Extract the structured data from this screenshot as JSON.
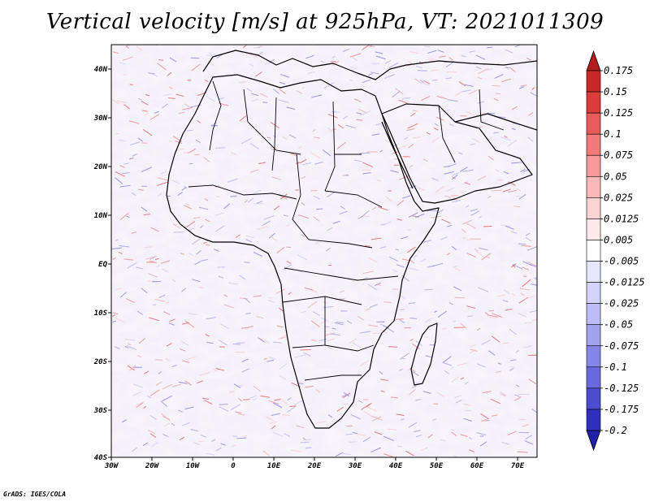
{
  "title": "Vertical velocity [m/s] at 925hPa, VT: 2021011309",
  "footer": "GrADS: IGES/COLA",
  "map": {
    "lon_ticks": [
      "30W",
      "20W",
      "10W",
      "0",
      "10E",
      "20E",
      "30E",
      "40E",
      "50E",
      "60E",
      "70E"
    ],
    "lat_ticks": [
      "40N",
      "30N",
      "20N",
      "10N",
      "EQ",
      "10S",
      "20S",
      "30S",
      "40S"
    ]
  },
  "colorbar": {
    "labels": [
      "0.175",
      "0.15",
      "0.125",
      "0.1",
      "0.075",
      "0.05",
      "0.025",
      "0.0125",
      "0.005",
      "-0.005",
      "-0.0125",
      "-0.025",
      "-0.05",
      "-0.075",
      "-0.1",
      "-0.125",
      "-0.175",
      "-0.2"
    ],
    "colors": [
      "#B01E1E",
      "#C82828",
      "#DC3C3C",
      "#EB5A5A",
      "#F27A7A",
      "#F69A9A",
      "#FAB8B8",
      "#FCD4D4",
      "#FEEAEA",
      "#FFFFFF",
      "#E6E6FC",
      "#D2D2FA",
      "#BCBCF6",
      "#A2A2F0",
      "#8686E8",
      "#6A6ADE",
      "#4C4CD0",
      "#3030C0",
      "#2020A8"
    ]
  }
}
